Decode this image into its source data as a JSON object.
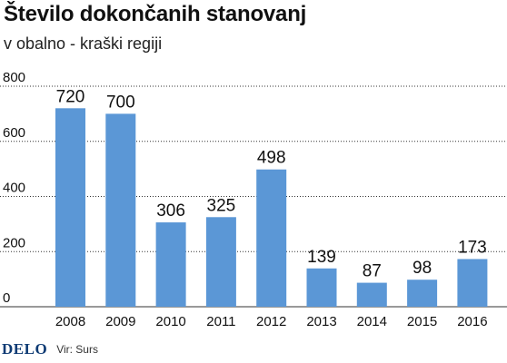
{
  "header": {
    "title": "Število dokončanih stanovanj",
    "subtitle": "v obalno - kraški regiji"
  },
  "footer": {
    "logo": "DELO",
    "source": "Vir: Surs"
  },
  "colors": {
    "bar": "#5b97d6",
    "grid": "#333333",
    "text": "#111111"
  },
  "chart_data": {
    "type": "bar",
    "title": "Število dokončanih stanovanj",
    "subtitle": "v obalno - kraški regiji",
    "xlabel": "",
    "ylabel": "",
    "categories": [
      "2008",
      "2009",
      "2010",
      "2011",
      "2012",
      "2013",
      "2014",
      "2015",
      "2016"
    ],
    "values": [
      720,
      700,
      306,
      325,
      498,
      139,
      87,
      98,
      173
    ],
    "ylim": [
      0,
      800
    ],
    "yticks": [
      0,
      200,
      400,
      600,
      800
    ],
    "grid": "horizontal-dotted",
    "legend": "none",
    "data_labels": true
  }
}
